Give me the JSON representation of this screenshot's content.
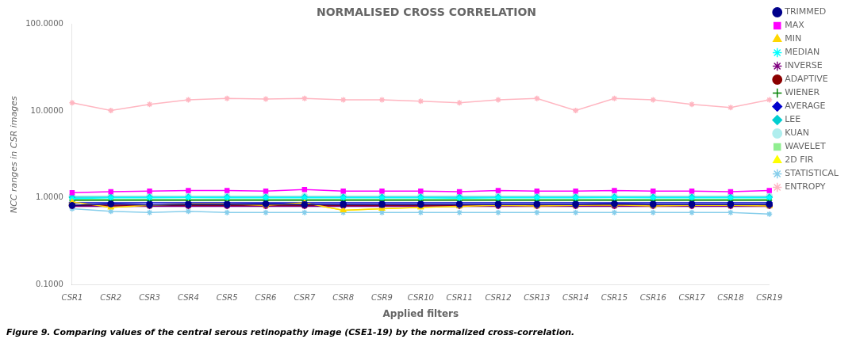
{
  "chart_data": {
    "type": "line",
    "title": "NORMALISED CROSS CORRELATION",
    "x_label": "Applied filters",
    "y_label": "NCC ranges in CSR images",
    "caption": "Figure 9. Comparing values of the central serous retinopathy image (CSE1-19) by the normalized cross-correlation.",
    "categories": [
      "CSR1",
      "CSR2",
      "CSR3",
      "CSR4",
      "CSR5",
      "CSR6",
      "CSR7",
      "CSR8",
      "CSR9",
      "CSR10",
      "CSR11",
      "CSR12",
      "CSR13",
      "CSR14",
      "CSR15",
      "CSR16",
      "CSR17",
      "CSR18",
      "CSR19"
    ],
    "log": "y",
    "ylim": [
      0.1,
      100.0
    ],
    "yticks": [
      {
        "value": 0.1,
        "label": "0.1000"
      },
      {
        "value": 1.0,
        "label": "1.0000"
      },
      {
        "value": 10.0,
        "label": "10.0000"
      },
      {
        "value": 100.0,
        "label": "100.0000"
      }
    ],
    "grid": false,
    "legend": "right",
    "series": [
      {
        "name": "TRIMMED",
        "color": "#00008B",
        "marker": "circle",
        "values": [
          0.82,
          0.85,
          0.83,
          0.84,
          0.84,
          0.85,
          0.84,
          0.84,
          0.84,
          0.84,
          0.84,
          0.84,
          0.84,
          0.84,
          0.85,
          0.84,
          0.84,
          0.84,
          0.84
        ]
      },
      {
        "name": "MAX",
        "color": "#FF00FF",
        "marker": "square",
        "values": [
          1.15,
          1.18,
          1.2,
          1.22,
          1.22,
          1.2,
          1.25,
          1.2,
          1.2,
          1.2,
          1.18,
          1.22,
          1.2,
          1.2,
          1.22,
          1.2,
          1.2,
          1.18,
          1.22
        ]
      },
      {
        "name": "MIN",
        "color": "#FFD700",
        "marker": "triangle",
        "values": [
          0.9,
          0.78,
          0.82,
          0.85,
          0.85,
          0.82,
          0.88,
          0.72,
          0.75,
          0.78,
          0.8,
          0.82,
          0.81,
          0.82,
          0.83,
          0.81,
          0.82,
          0.82,
          0.81
        ]
      },
      {
        "name": "MEDIAN",
        "color": "#00FFFF",
        "marker": "star",
        "values": [
          0.98,
          1.0,
          1.0,
          1.01,
          1.0,
          1.0,
          1.0,
          1.0,
          1.0,
          1.0,
          0.99,
          1.0,
          1.0,
          1.0,
          1.01,
          1.0,
          1.0,
          1.0,
          1.0
        ]
      },
      {
        "name": "INVERSE",
        "color": "#800080",
        "marker": "star",
        "values": [
          0.8,
          0.8,
          0.8,
          0.8,
          0.8,
          0.8,
          0.8,
          0.8,
          0.8,
          0.8,
          0.8,
          0.8,
          0.8,
          0.8,
          0.8,
          0.8,
          0.8,
          0.8,
          0.8
        ]
      },
      {
        "name": "ADAPTIVE",
        "color": "#8B0000",
        "marker": "circle",
        "values": [
          0.82,
          0.82,
          0.82,
          0.82,
          0.82,
          0.82,
          0.82,
          0.82,
          0.82,
          0.82,
          0.82,
          0.82,
          0.82,
          0.82,
          0.82,
          0.82,
          0.82,
          0.82,
          0.82
        ]
      },
      {
        "name": "WIENER",
        "color": "#008000",
        "marker": "plus",
        "values": [
          0.94,
          0.94,
          0.94,
          0.94,
          0.94,
          0.94,
          0.94,
          0.94,
          0.94,
          0.94,
          0.94,
          0.94,
          0.94,
          0.94,
          0.94,
          0.94,
          0.94,
          0.94,
          0.94
        ]
      },
      {
        "name": "AVERAGE",
        "color": "#0000CD",
        "marker": "diamond",
        "values": [
          0.88,
          0.88,
          0.88,
          0.88,
          0.88,
          0.88,
          0.88,
          0.88,
          0.88,
          0.88,
          0.88,
          0.88,
          0.88,
          0.88,
          0.88,
          0.88,
          0.88,
          0.88,
          0.88
        ]
      },
      {
        "name": "LEE",
        "color": "#00CED1",
        "marker": "diamond",
        "values": [
          1.02,
          1.02,
          1.02,
          1.02,
          1.02,
          1.02,
          1.02,
          1.02,
          1.02,
          1.02,
          1.02,
          1.02,
          1.02,
          1.02,
          1.02,
          1.02,
          1.02,
          1.02,
          1.02
        ]
      },
      {
        "name": "KUAN",
        "color": "#AFEEEE",
        "marker": "circle",
        "values": [
          1.05,
          1.05,
          1.05,
          1.05,
          1.05,
          1.05,
          1.05,
          1.05,
          1.05,
          1.05,
          1.05,
          1.05,
          1.05,
          1.05,
          1.05,
          1.05,
          1.05,
          1.05,
          1.05
        ]
      },
      {
        "name": "WAVELET",
        "color": "#90EE90",
        "marker": "square",
        "values": [
          0.96,
          0.96,
          0.96,
          0.96,
          0.96,
          0.96,
          0.96,
          0.96,
          0.96,
          0.96,
          0.96,
          0.96,
          0.96,
          0.96,
          0.96,
          0.96,
          0.96,
          0.96,
          0.96
        ]
      },
      {
        "name": "2D FIR",
        "color": "#FFFF00",
        "marker": "triangle",
        "values": [
          0.9,
          0.78,
          0.82,
          0.85,
          0.85,
          0.82,
          0.88,
          0.72,
          0.75,
          0.78,
          0.8,
          0.82,
          0.81,
          0.82,
          0.83,
          0.81,
          0.82,
          0.82,
          0.81
        ]
      },
      {
        "name": "STATISTICAL",
        "color": "#87CEEB",
        "marker": "star",
        "values": [
          0.75,
          0.7,
          0.68,
          0.7,
          0.68,
          0.68,
          0.68,
          0.68,
          0.68,
          0.68,
          0.68,
          0.68,
          0.68,
          0.68,
          0.68,
          0.68,
          0.68,
          0.68,
          0.65
        ]
      },
      {
        "name": "ENTROPY",
        "color": "#FFB6C1",
        "marker": "star",
        "values": [
          12.5,
          10.2,
          12.0,
          13.5,
          14.0,
          13.8,
          14.0,
          13.5,
          13.5,
          13.0,
          12.5,
          13.5,
          14.0,
          10.2,
          14.0,
          13.5,
          12.0,
          11.0,
          13.5
        ]
      }
    ]
  }
}
